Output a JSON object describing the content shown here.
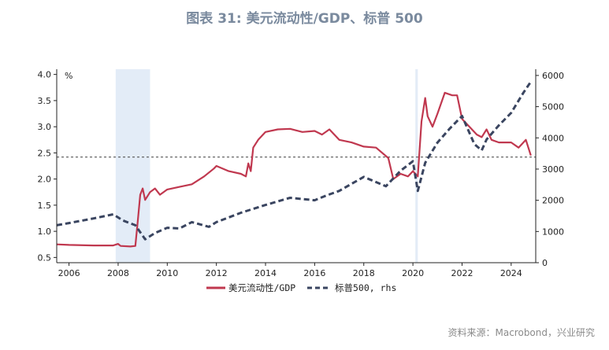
{
  "title": "图表 31: 美元流动性/GDP、标普 500",
  "source": "资料来源：Macrobond，兴业研究",
  "colors": {
    "liquidity": "#c0384f",
    "sp500": "#3a4560",
    "recession": "#e3ecf7",
    "refline": "#555555"
  },
  "chart_data": {
    "type": "line",
    "left_axis_label": "%",
    "x_ticks": [
      2006,
      2008,
      2010,
      2012,
      2014,
      2016,
      2018,
      2020,
      2022,
      2024
    ],
    "xlim": [
      2005.5,
      2025.0
    ],
    "ylim_left": [
      0.4,
      4.1
    ],
    "ylim_right": [
      0,
      6200
    ],
    "y_ticks_left": [
      "4.0",
      "3.5",
      "3.0",
      "2.5",
      "2.0",
      "1.5",
      "1.0",
      "0.5"
    ],
    "y_ticks_right": [
      "6000",
      "5000",
      "4000",
      "3000",
      "2000",
      "1000",
      "0"
    ],
    "shaded_periods": [
      [
        2007.9,
        2009.3
      ],
      [
        2020.1,
        2020.2
      ]
    ],
    "reference_line_left": 2.42,
    "series": [
      {
        "name": "美元流动性/GDP",
        "axis": "left",
        "style": "solid",
        "points": [
          [
            2005.5,
            0.75
          ],
          [
            2006.0,
            0.74
          ],
          [
            2007.0,
            0.73
          ],
          [
            2007.8,
            0.73
          ],
          [
            2008.0,
            0.76
          ],
          [
            2008.1,
            0.72
          ],
          [
            2008.5,
            0.71
          ],
          [
            2008.7,
            0.72
          ],
          [
            2008.8,
            1.2
          ],
          [
            2008.9,
            1.7
          ],
          [
            2009.0,
            1.82
          ],
          [
            2009.1,
            1.6
          ],
          [
            2009.3,
            1.75
          ],
          [
            2009.5,
            1.82
          ],
          [
            2009.7,
            1.7
          ],
          [
            2010.0,
            1.8
          ],
          [
            2010.5,
            1.85
          ],
          [
            2011.0,
            1.9
          ],
          [
            2011.5,
            2.05
          ],
          [
            2011.9,
            2.2
          ],
          [
            2012.0,
            2.25
          ],
          [
            2012.5,
            2.15
          ],
          [
            2013.0,
            2.1
          ],
          [
            2013.2,
            2.05
          ],
          [
            2013.3,
            2.3
          ],
          [
            2013.4,
            2.15
          ],
          [
            2013.5,
            2.6
          ],
          [
            2013.7,
            2.75
          ],
          [
            2014.0,
            2.9
          ],
          [
            2014.5,
            2.95
          ],
          [
            2015.0,
            2.96
          ],
          [
            2015.5,
            2.9
          ],
          [
            2016.0,
            2.92
          ],
          [
            2016.3,
            2.85
          ],
          [
            2016.6,
            2.95
          ],
          [
            2017.0,
            2.75
          ],
          [
            2017.5,
            2.7
          ],
          [
            2018.0,
            2.62
          ],
          [
            2018.5,
            2.6
          ],
          [
            2019.0,
            2.4
          ],
          [
            2019.2,
            2.0
          ],
          [
            2019.5,
            2.1
          ],
          [
            2019.8,
            2.05
          ],
          [
            2020.0,
            2.15
          ],
          [
            2020.2,
            2.05
          ],
          [
            2020.35,
            3.1
          ],
          [
            2020.5,
            3.55
          ],
          [
            2020.6,
            3.2
          ],
          [
            2020.8,
            3.0
          ],
          [
            2021.0,
            3.25
          ],
          [
            2021.3,
            3.65
          ],
          [
            2021.6,
            3.6
          ],
          [
            2021.8,
            3.6
          ],
          [
            2022.0,
            3.15
          ],
          [
            2022.3,
            3.0
          ],
          [
            2022.6,
            2.85
          ],
          [
            2022.8,
            2.8
          ],
          [
            2023.0,
            2.95
          ],
          [
            2023.2,
            2.75
          ],
          [
            2023.5,
            2.7
          ],
          [
            2024.0,
            2.7
          ],
          [
            2024.3,
            2.6
          ],
          [
            2024.6,
            2.75
          ],
          [
            2024.8,
            2.45
          ]
        ]
      },
      {
        "name": "标普500, rhs",
        "axis": "right",
        "style": "dashed",
        "points": [
          [
            2005.5,
            1200
          ],
          [
            2006.0,
            1270
          ],
          [
            2007.0,
            1420
          ],
          [
            2007.8,
            1550
          ],
          [
            2008.2,
            1350
          ],
          [
            2008.7,
            1200
          ],
          [
            2009.1,
            750
          ],
          [
            2009.5,
            950
          ],
          [
            2010.0,
            1120
          ],
          [
            2010.5,
            1100
          ],
          [
            2011.0,
            1300
          ],
          [
            2011.7,
            1150
          ],
          [
            2012.0,
            1300
          ],
          [
            2013.0,
            1600
          ],
          [
            2014.0,
            1850
          ],
          [
            2015.0,
            2080
          ],
          [
            2016.0,
            2000
          ],
          [
            2016.5,
            2160
          ],
          [
            2017.0,
            2300
          ],
          [
            2018.0,
            2750
          ],
          [
            2018.9,
            2450
          ],
          [
            2019.5,
            2950
          ],
          [
            2020.0,
            3250
          ],
          [
            2020.2,
            2300
          ],
          [
            2020.5,
            3200
          ],
          [
            2021.0,
            3850
          ],
          [
            2021.5,
            4300
          ],
          [
            2022.0,
            4700
          ],
          [
            2022.5,
            3800
          ],
          [
            2022.8,
            3600
          ],
          [
            2023.0,
            3950
          ],
          [
            2023.5,
            4400
          ],
          [
            2024.0,
            4800
          ],
          [
            2024.5,
            5450
          ],
          [
            2024.8,
            5800
          ]
        ]
      }
    ]
  }
}
